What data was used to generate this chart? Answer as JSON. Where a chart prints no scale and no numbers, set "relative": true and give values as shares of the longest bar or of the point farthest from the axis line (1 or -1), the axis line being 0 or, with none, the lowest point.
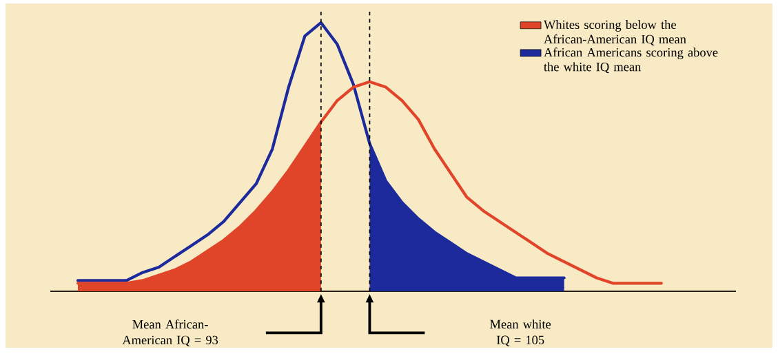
{
  "chart_data": {
    "type": "line",
    "relative": true,
    "tick_labels": false,
    "legend": "top right",
    "categories": [
      null,
      null,
      null,
      null,
      null,
      null,
      null,
      null,
      null,
      null,
      null,
      null,
      null,
      null,
      null,
      null,
      null,
      null,
      null,
      null,
      null,
      null,
      null,
      null,
      null,
      null,
      null,
      null,
      null,
      null,
      null,
      null,
      null,
      null,
      null,
      null,
      null
    ],
    "series": [
      {
        "type": "area",
        "name": "Whites scoring below the African-American IQ mean",
        "color": "#e0452a",
        "values": [
          0.03,
          0.03,
          0.03,
          0.03,
          0.04,
          0.06,
          0.08,
          0.11,
          0.15,
          0.19,
          0.24,
          0.3,
          0.37,
          0.45,
          0.54,
          0.63,
          null,
          null,
          null,
          null,
          null,
          null,
          null,
          null,
          null,
          null,
          null,
          null,
          null,
          null,
          null,
          null,
          null,
          null,
          null,
          null,
          null
        ]
      },
      {
        "type": "area",
        "name": "African Americans scoring above the white IQ mean",
        "color": "#1c2a9c",
        "values": [
          null,
          null,
          null,
          null,
          null,
          null,
          null,
          null,
          null,
          null,
          null,
          null,
          null,
          null,
          null,
          null,
          null,
          null,
          0.55,
          0.41,
          0.33,
          0.27,
          0.22,
          0.18,
          0.14,
          0.11,
          0.08,
          0.05,
          0.05,
          0.05,
          0.05,
          null,
          null,
          null,
          null,
          null,
          null
        ]
      },
      {
        "color": "#1c2a9c",
        "values": [
          0.04,
          0.04,
          0.04,
          0.04,
          0.07,
          0.09,
          0.13,
          0.17,
          0.21,
          0.26,
          0.33,
          0.4,
          0.53,
          0.76,
          0.95,
          1.0,
          0.92,
          0.77,
          0.55,
          0.41,
          0.33,
          0.27,
          0.22,
          0.18,
          0.14,
          0.11,
          0.08,
          0.05,
          0.05,
          0.05,
          0.05,
          null,
          null,
          null,
          null,
          null,
          null
        ]
      },
      {
        "color": "#e0452a",
        "values": [
          0.03,
          0.03,
          0.03,
          0.03,
          0.04,
          0.06,
          0.08,
          0.11,
          0.15,
          0.19,
          0.24,
          0.3,
          0.37,
          0.45,
          0.54,
          0.63,
          0.71,
          0.76,
          0.78,
          0.76,
          0.71,
          0.64,
          0.53,
          0.44,
          0.35,
          0.3,
          0.26,
          0.22,
          0.18,
          0.14,
          0.11,
          0.08,
          0.05,
          0.03,
          0.03,
          0.03,
          0.03
        ]
      }
    ],
    "annotations": [
      "Mean African-American IQ = 93",
      "Mean white IQ = 105"
    ]
  }
}
